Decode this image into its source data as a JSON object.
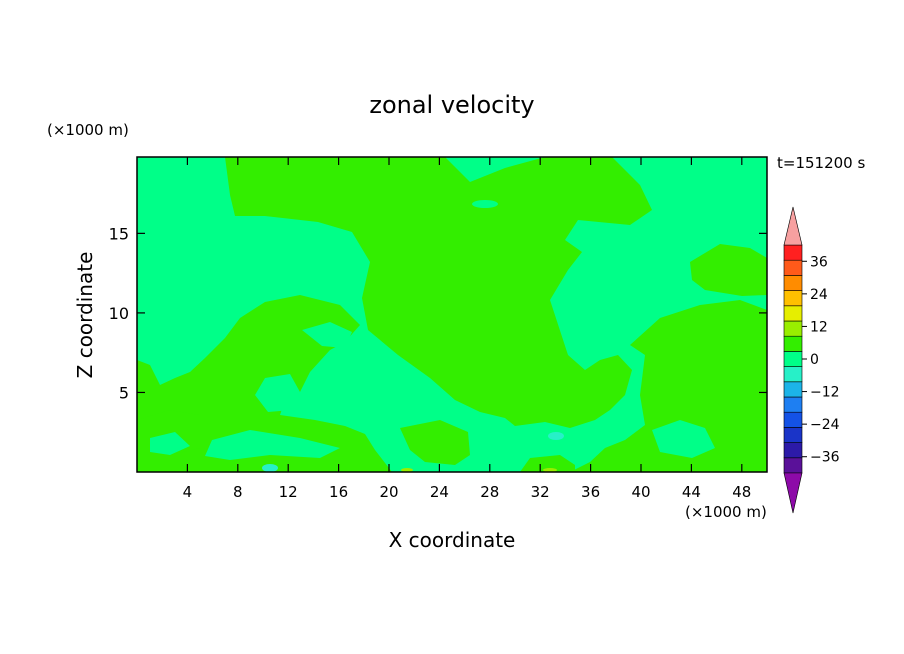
{
  "chart_data": {
    "type": "heatmap",
    "title": "zonal velocity",
    "xlabel": "X coordinate",
    "ylabel": "Z coordinate",
    "x_unit": "(×1000 m)",
    "y_unit": "(×1000 m)",
    "time_label": "t=151200 s",
    "xlim": [
      0,
      50
    ],
    "ylim": [
      0,
      19.8
    ],
    "x_ticks": [
      4,
      8,
      12,
      16,
      20,
      24,
      28,
      32,
      36,
      40,
      44,
      48
    ],
    "y_ticks": [
      5,
      10,
      15
    ],
    "grid": false,
    "background_field": "0 to -6 (mint green)",
    "colorbar": {
      "levels": [
        -42,
        -36,
        -30,
        -24,
        -18,
        -12,
        -6,
        0,
        6,
        12,
        18,
        24,
        30,
        36,
        42
      ],
      "tick_labels": [
        -36,
        -24,
        -12,
        0,
        12,
        24,
        36
      ],
      "colors": [
        "#5a1199",
        "#2c1aa8",
        "#1a34c8",
        "#1452e6",
        "#1e7ff2",
        "#1cb4e8",
        "#27f0c8",
        "#00ff88",
        "#33ee00",
        "#99ee00",
        "#e6ee00",
        "#ffc000",
        "#ff8c00",
        "#ff5a1a",
        "#ff2020"
      ],
      "under_color": "#8d0aa8",
      "over_color": "#f7a0a0"
    }
  }
}
